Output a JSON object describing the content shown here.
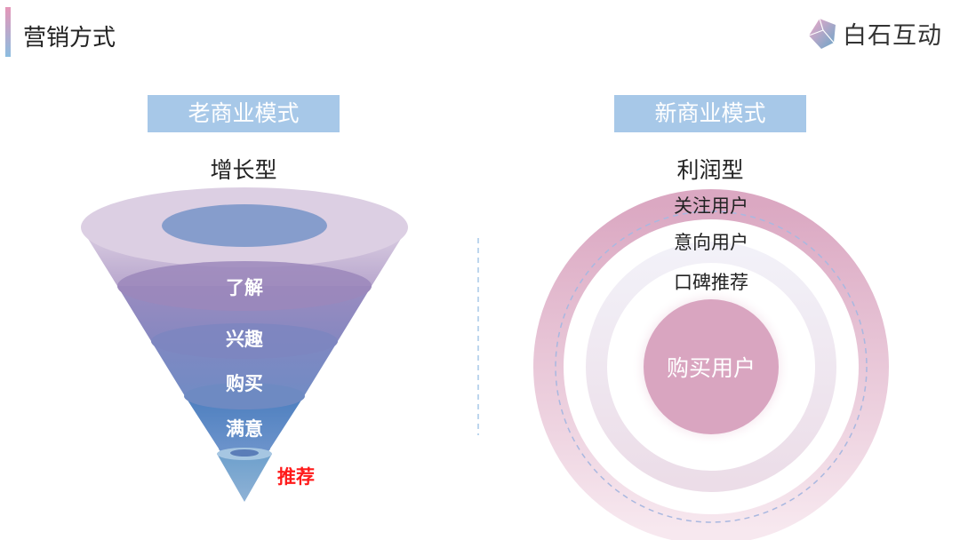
{
  "header": {
    "title": "营销方式",
    "logo_text": "白石互动"
  },
  "left": {
    "tag": "老商业模式",
    "subtitle": "增长型",
    "funnel_levels": [
      "了解",
      "兴趣",
      "购买",
      "满意",
      "推荐"
    ],
    "highlight_color": "#ff1a1a"
  },
  "right": {
    "tag": "新商业模式",
    "subtitle": "利润型",
    "rings": [
      "关注用户",
      "意向用户",
      "口碑推荐"
    ],
    "center": "购买用户"
  },
  "colors": {
    "tag_bg": "#a7c8e8",
    "ring_pink": "#dba8c2",
    "center_pink": "#d9a5c0",
    "funnel_top": "#d9cce0",
    "funnel_bottom": "#6f95c8"
  }
}
